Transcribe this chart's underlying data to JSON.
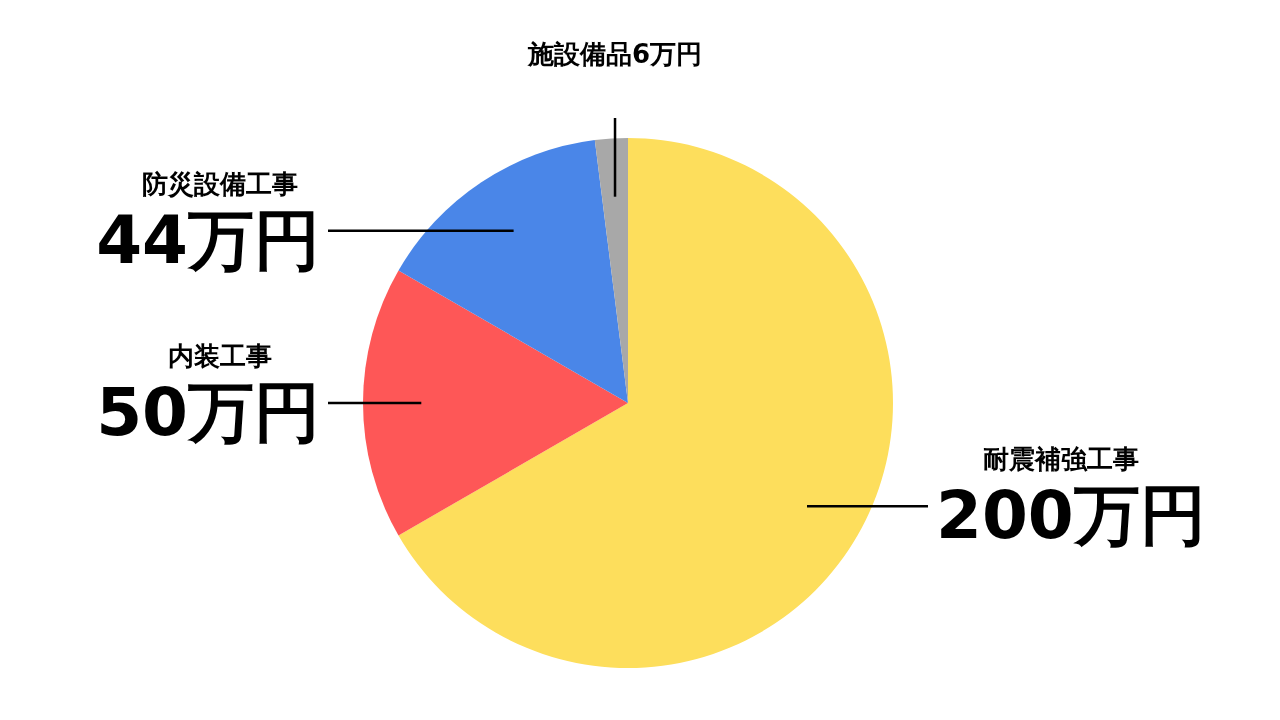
{
  "chart_data": {
    "type": "pie",
    "categories": [
      "耐震補強工事",
      "内装工事",
      "防災設備工事",
      "施設備品"
    ],
    "values": [
      200,
      50,
      44,
      6
    ],
    "colors": [
      "#fdde5c",
      "#fe5757",
      "#4a86e8",
      "#a8a8a8"
    ],
    "value_labels": [
      "200万円",
      "50万円",
      "44万円",
      "6万円"
    ]
  }
}
